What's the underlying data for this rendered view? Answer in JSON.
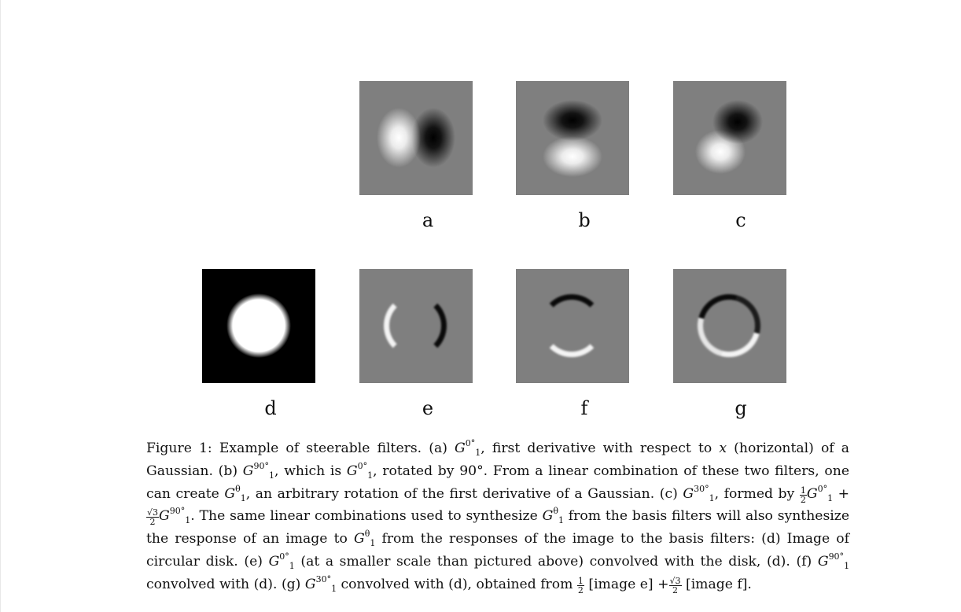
{
  "figure": {
    "panels": [
      {
        "id": "a",
        "label": "a",
        "content": "first-derivative-horizontal"
      },
      {
        "id": "b",
        "label": "b",
        "content": "first-derivative-vertical"
      },
      {
        "id": "c",
        "label": "c",
        "content": "first-derivative-30deg"
      },
      {
        "id": "d",
        "label": "d",
        "content": "circular-disk"
      },
      {
        "id": "e",
        "label": "e",
        "content": "disk-response-horizontal"
      },
      {
        "id": "f",
        "label": "f",
        "content": "disk-response-vertical"
      },
      {
        "id": "g",
        "label": "g",
        "content": "disk-response-30deg"
      }
    ],
    "colors": {
      "panel_gray": "#7f7f7f",
      "light": "#ffffff",
      "dark": "#000000"
    }
  },
  "caption": {
    "fig": "Figure 1:",
    "s1": "Example of steerable filters.",
    "a": "(a)",
    "G": "G",
    "sub1": "1",
    "sup0": "0°",
    "sup90": "90°",
    "sup30": "30°",
    "theta": "θ",
    "t_a": ", first derivative with respect to",
    "x": "x",
    "t_a2": "(horizontal) of a Gaussian.",
    "b": "(b)",
    "t_b": ", which is",
    "t_b2": ", rotated by 90°. From a linear combination of these two filters, one can create",
    "t_b3": ", an arbitrary rotation of the first derivative of a Gaussian.",
    "c": "(c)",
    "t_c": ", formed by",
    "half_num": "1",
    "half_den": "2",
    "plus": "+",
    "sqrt3": "√3",
    "two": "2",
    "t_c2": ". The same linear combinations used to synthesize",
    "t_c3": "from the basis filters will also synthesize the response of an image to",
    "t_c4": "from the responses of the image to the basis filters:",
    "d": "(d) Image of circular disk.",
    "e": "(e)",
    "t_e": "(at a smaller scale than pictured above) convolved with the disk, (d).",
    "f": "(f)",
    "t_f": "convolved with (d).",
    "g": "(g)",
    "t_g": "convolved with (d), obtained from",
    "t_g2": "[image e]",
    "t_g3": "[image f]."
  }
}
